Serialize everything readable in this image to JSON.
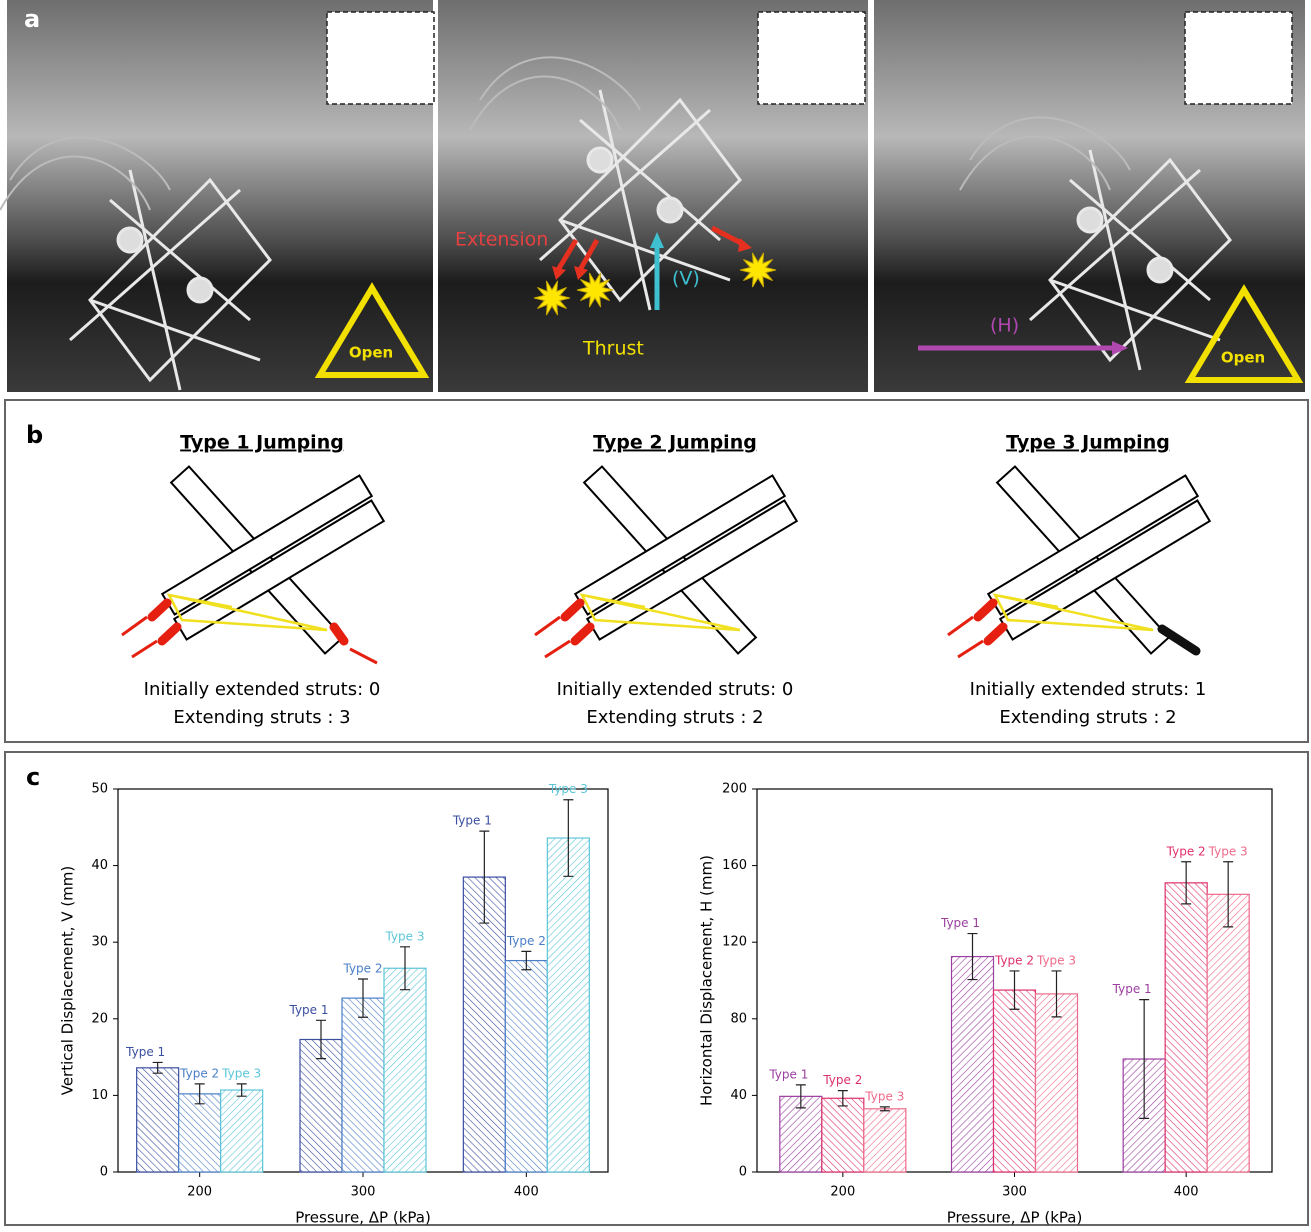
{
  "panel_a": {
    "label": "a",
    "annotations": {
      "extension": "Extension",
      "vertical": "(V)",
      "thrust": "Thrust",
      "horizontal": "(H)"
    },
    "open_labels": [
      "Open",
      "Open"
    ]
  },
  "panel_b": {
    "label": "b",
    "diagrams": [
      {
        "title": "Type 1 Jumping",
        "lines": [
          "Initially extended struts: 0",
          "Extending struts : 3"
        ]
      },
      {
        "title": "Type 2 Jumping",
        "lines": [
          "Initially extended struts: 0",
          "Extending struts : 2"
        ]
      },
      {
        "title": "Type 3 Jumping",
        "lines": [
          "Initially extended struts: 1",
          "Extending struts : 2"
        ]
      }
    ]
  },
  "panel_c": {
    "label": "c"
  },
  "chart_data": [
    {
      "type": "bar",
      "y_label": "Vertical Displacement, V (mm)",
      "x_label": "Pressure, ΔP (kPa)",
      "categories": [
        "200",
        "300",
        "400"
      ],
      "series": [
        {
          "name": "Type 1",
          "color": "#3b4ea0",
          "values": [
            13.6,
            17.3,
            38.5
          ],
          "errors": [
            0.7,
            2.5,
            6
          ]
        },
        {
          "name": "Type 2",
          "color": "#4a7fc8",
          "values": [
            10.2,
            22.7,
            27.6
          ],
          "errors": [
            1.3,
            2.5,
            1.2
          ]
        },
        {
          "name": "Type 3",
          "color": "#5cc6d8",
          "values": [
            10.7,
            26.6,
            43.6
          ],
          "errors": [
            0.8,
            2.8,
            5
          ]
        }
      ],
      "ylim": [
        0,
        50
      ],
      "yticks": [
        0,
        10,
        20,
        30,
        40,
        50
      ]
    },
    {
      "type": "bar",
      "y_label": "Horizontal Displacement, H (mm)",
      "x_label": "Pressure, ΔP (kPa)",
      "categories": [
        "200",
        "300",
        "400"
      ],
      "series": [
        {
          "name": "Type 1",
          "color": "#9b3fa0",
          "values": [
            39.5,
            112.5,
            59
          ],
          "errors": [
            6,
            12,
            31
          ]
        },
        {
          "name": "Type 2",
          "color": "#e0306a",
          "values": [
            38.5,
            95,
            151
          ],
          "errors": [
            4,
            10,
            11
          ]
        },
        {
          "name": "Type 3",
          "color": "#ee6a8a",
          "values": [
            33,
            93,
            145
          ],
          "errors": [
            1,
            12,
            17
          ]
        }
      ],
      "ylim": [
        0,
        200
      ],
      "yticks": [
        0,
        40,
        80,
        120,
        160,
        200
      ]
    }
  ]
}
